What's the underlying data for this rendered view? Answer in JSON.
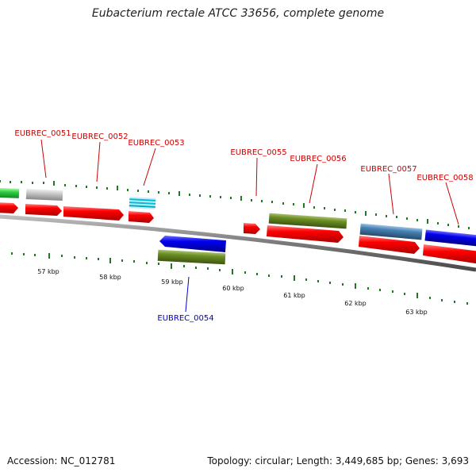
{
  "title": "Eubacterium rectale ATCC 33656, complete genome",
  "accession_label": "Accession: NC_012781",
  "topology_label": "Topology: circular; Length: 3,449,685 bp; Genes: 3,693",
  "colors": {
    "forward_label": "#cc0000",
    "reverse_label": "#0000cc",
    "tick": "#227722",
    "backbone": "#808080",
    "cds": "#ff0000",
    "rRNA_blue": "#0000ee",
    "olive": "#6b8e23",
    "steelblue": "#4682b4",
    "grey": "#c0c0c0",
    "green": "#32cd32",
    "cyan": "#00bcd4"
  },
  "scale": {
    "unit": "kbp",
    "labels": [
      "57 kbp",
      "58 kbp",
      "59 kbp",
      "60 kbp",
      "61 kbp",
      "62 kbp",
      "63 kbp"
    ]
  },
  "gene_labels": [
    {
      "id": "EUBREC_0051",
      "strand": "+"
    },
    {
      "id": "EUBREC_0052",
      "strand": "+"
    },
    {
      "id": "EUBREC_0053",
      "strand": "+"
    },
    {
      "id": "EUBREC_0054",
      "strand": "-"
    },
    {
      "id": "EUBREC_0055",
      "strand": "+"
    },
    {
      "id": "EUBREC_0056",
      "strand": "+"
    },
    {
      "id": "EUBREC_0057",
      "strand": "+"
    },
    {
      "id": "EUBREC_0058",
      "strand": "+"
    }
  ]
}
